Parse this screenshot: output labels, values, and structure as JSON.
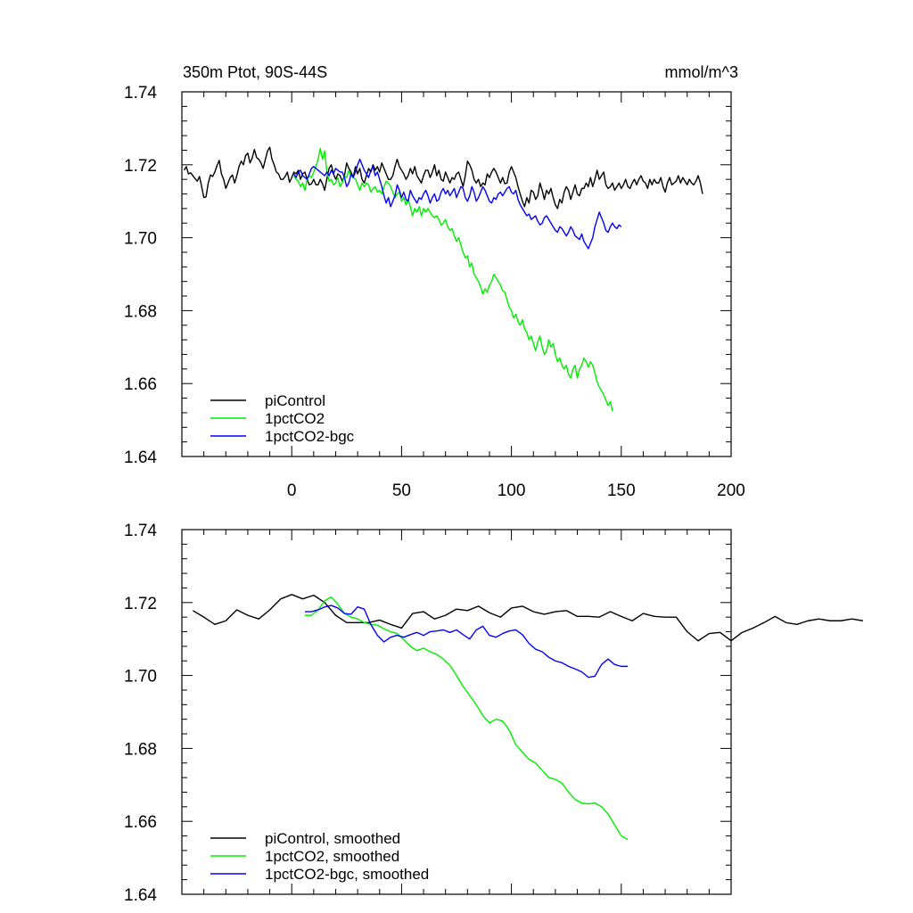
{
  "chart_data": [
    {
      "type": "line",
      "title_left": "350m Ptot, 90S-44S",
      "title_right": "mmol/m^3",
      "xlim": [
        -50,
        200
      ],
      "ylim": [
        1.64,
        1.74
      ],
      "x_ticks": [
        0,
        50,
        100,
        150,
        200
      ],
      "y_ticks": [
        1.64,
        1.66,
        1.68,
        1.7,
        1.72,
        1.74
      ],
      "y_tick_labels": [
        "1.64",
        "1.66",
        "1.68",
        "1.70",
        "1.72",
        "1.74"
      ],
      "x_tick_labels": [
        "0",
        "50",
        "100",
        "150",
        "200"
      ],
      "legend_position": "bottom-left",
      "series": [
        {
          "name": "piControl",
          "color": "#000000",
          "x_start": -49,
          "x_step": 1,
          "values": [
            1.7185,
            1.7195,
            1.7175,
            1.7178,
            1.717,
            1.7162,
            1.7155,
            1.7168,
            1.714,
            1.711,
            1.7112,
            1.715,
            1.7172,
            1.7168,
            1.718,
            1.7198,
            1.7212,
            1.7175,
            1.716,
            1.7135,
            1.715,
            1.7165,
            1.7172,
            1.715,
            1.717,
            1.7195,
            1.721,
            1.72,
            1.7225,
            1.7232,
            1.7205,
            1.7218,
            1.7242,
            1.722,
            1.7215,
            1.7205,
            1.719,
            1.7215,
            1.7238,
            1.7248,
            1.7215,
            1.72,
            1.718,
            1.7175,
            1.716,
            1.716,
            1.7168,
            1.718,
            1.7152,
            1.7165,
            1.718,
            1.7175,
            1.7185,
            1.716,
            1.7175,
            1.718,
            1.716,
            1.7145,
            1.7148,
            1.716,
            1.7145,
            1.7145,
            1.716,
            1.7148,
            1.713,
            1.7162,
            1.719,
            1.72,
            1.7175,
            1.716,
            1.7175,
            1.717,
            1.7155,
            1.717,
            1.7205,
            1.719,
            1.718,
            1.7165,
            1.7195,
            1.7175,
            1.719,
            1.716,
            1.715,
            1.717,
            1.719,
            1.718,
            1.72,
            1.7185,
            1.7195,
            1.718,
            1.7205,
            1.719,
            1.7175,
            1.716,
            1.716,
            1.717,
            1.7195,
            1.7215,
            1.7195,
            1.7185,
            1.7175,
            1.716,
            1.717,
            1.719,
            1.7175,
            1.7195,
            1.717,
            1.716,
            1.715,
            1.717,
            1.7185,
            1.7185,
            1.7165,
            1.718,
            1.72,
            1.717,
            1.7185,
            1.716,
            1.7155,
            1.718,
            1.7165,
            1.715,
            1.7165,
            1.716,
            1.7175,
            1.718,
            1.716,
            1.714,
            1.717,
            1.721,
            1.72,
            1.7185,
            1.716,
            1.715,
            1.716,
            1.714,
            1.715,
            1.7145,
            1.7175,
            1.7165,
            1.718,
            1.719,
            1.718,
            1.7165,
            1.715,
            1.7165,
            1.7148,
            1.715,
            1.718,
            1.7195,
            1.718,
            1.7165,
            1.714,
            1.712,
            1.71,
            1.7085,
            1.711,
            1.7095,
            1.713,
            1.7125,
            1.7105,
            1.7115,
            1.715,
            1.713,
            1.7105,
            1.713,
            1.712,
            1.7135,
            1.711,
            1.709,
            1.708,
            1.7105,
            1.7095,
            1.7125,
            1.714,
            1.713,
            1.7105,
            1.7125,
            1.7145,
            1.712,
            1.7115,
            1.7135,
            1.7135,
            1.715,
            1.714,
            1.7165,
            1.714,
            1.716,
            1.7185,
            1.716,
            1.717,
            1.718,
            1.7145,
            1.7135,
            1.714,
            1.715,
            1.713,
            1.714,
            1.715,
            1.7135,
            1.7145,
            1.716,
            1.714,
            1.7135,
            1.715,
            1.716,
            1.7145,
            1.716,
            1.717,
            1.7155,
            1.715,
            1.7135,
            1.716,
            1.7145,
            1.716,
            1.715,
            1.715,
            1.7165,
            1.714,
            1.7125,
            1.715,
            1.7165,
            1.7145,
            1.715,
            1.7155,
            1.717,
            1.715,
            1.7165,
            1.7155,
            1.7145,
            1.716,
            1.715,
            1.7145,
            1.7155,
            1.717,
            1.715,
            1.712
          ]
        },
        {
          "name": "1pctCO2",
          "color": "#00ee00",
          "x_start": 1,
          "x_step": 1,
          "values": [
            1.717,
            1.716,
            1.7155,
            1.714,
            1.715,
            1.713,
            1.716,
            1.717,
            1.7165,
            1.718,
            1.7195,
            1.7215,
            1.7245,
            1.7215,
            1.7238,
            1.718,
            1.7155,
            1.716,
            1.7145,
            1.715,
            1.7165,
            1.714,
            1.715,
            1.717,
            1.7165,
            1.7185,
            1.717,
            1.7165,
            1.716,
            1.7145,
            1.713,
            1.715,
            1.714,
            1.715,
            1.7145,
            1.7125,
            1.7135,
            1.714,
            1.7125,
            1.713,
            1.712,
            1.714,
            1.7155,
            1.715,
            1.714,
            1.7125,
            1.711,
            1.712,
            1.7125,
            1.71,
            1.711,
            1.709,
            1.7105,
            1.7085,
            1.706,
            1.708,
            1.707,
            1.7085,
            1.706,
            1.708,
            1.707,
            1.708,
            1.707,
            1.706,
            1.7055,
            1.706,
            1.705,
            1.7035,
            1.704,
            1.705,
            1.703,
            1.702,
            1.7025,
            1.7005,
            1.699,
            1.7,
            1.698,
            1.696,
            1.6945,
            1.695,
            1.692,
            1.693,
            1.69,
            1.689,
            1.688,
            1.6865,
            1.6845,
            1.686,
            1.685,
            1.687,
            1.688,
            1.69,
            1.689,
            1.688,
            1.687,
            1.6855,
            1.685,
            1.683,
            1.681,
            1.68,
            1.678,
            1.679,
            1.677,
            1.676,
            1.6775,
            1.675,
            1.674,
            1.672,
            1.673,
            1.671,
            1.669,
            1.6715,
            1.673,
            1.67,
            1.668,
            1.669,
            1.672,
            1.67,
            1.671,
            1.668,
            1.666,
            1.667,
            1.665,
            1.664,
            1.665,
            1.6625,
            1.6615,
            1.664,
            1.665,
            1.6615,
            1.664,
            1.665,
            1.667,
            1.666,
            1.6645,
            1.666,
            1.665,
            1.663,
            1.6605,
            1.659,
            1.658,
            1.657,
            1.6555,
            1.654,
            1.655,
            1.6525
          ]
        },
        {
          "name": "1pctCO2-bgc",
          "color": "#0000ff",
          "x_start": 1,
          "x_step": 1,
          "values": [
            1.7175,
            1.7165,
            1.718,
            1.7185,
            1.717,
            1.7165,
            1.716,
            1.7175,
            1.719,
            1.7195,
            1.719,
            1.7185,
            1.718,
            1.7175,
            1.717,
            1.718,
            1.717,
            1.7185,
            1.7175,
            1.719,
            1.7185,
            1.718,
            1.718,
            1.7165,
            1.714,
            1.715,
            1.7175,
            1.7165,
            1.718,
            1.72,
            1.7215,
            1.72,
            1.7185,
            1.7175,
            1.7165,
            1.7185,
            1.7195,
            1.717,
            1.718,
            1.716,
            1.714,
            1.7115,
            1.7095,
            1.711,
            1.7085,
            1.71,
            1.7115,
            1.7145,
            1.713,
            1.711,
            1.7125,
            1.7105,
            1.71,
            1.713,
            1.7115,
            1.7105,
            1.7095,
            1.711,
            1.7105,
            1.712,
            1.713,
            1.7115,
            1.7095,
            1.711,
            1.712,
            1.71,
            1.7105,
            1.7125,
            1.7135,
            1.712,
            1.713,
            1.7115,
            1.7125,
            1.7135,
            1.711,
            1.7125,
            1.714,
            1.7135,
            1.711,
            1.71,
            1.7115,
            1.714,
            1.7125,
            1.71,
            1.711,
            1.7125,
            1.714,
            1.713,
            1.7115,
            1.71,
            1.7095,
            1.711,
            1.7105,
            1.712,
            1.7125,
            1.7115,
            1.7125,
            1.7135,
            1.714,
            1.7125,
            1.712,
            1.713,
            1.7105,
            1.709,
            1.708,
            1.707,
            1.706,
            1.7065,
            1.705,
            1.7055,
            1.706,
            1.7045,
            1.7035,
            1.704,
            1.7055,
            1.706,
            1.705,
            1.704,
            1.703,
            1.702,
            1.7015,
            1.703,
            1.7025,
            1.7015,
            1.7005,
            1.7015,
            1.703,
            1.702,
            1.7005,
            1.7,
            1.6995,
            1.701,
            1.699,
            1.698,
            1.697,
            1.6985,
            1.7,
            1.703,
            1.705,
            1.707,
            1.7055,
            1.704,
            1.702,
            1.7015,
            1.703,
            1.704,
            1.703,
            1.7025,
            1.7035,
            1.703
          ]
        }
      ]
    },
    {
      "type": "line",
      "xlim": [
        -50,
        200
      ],
      "ylim": [
        1.64,
        1.74
      ],
      "x_ticks": [
        0,
        50,
        100,
        150,
        200
      ],
      "y_ticks": [
        1.64,
        1.66,
        1.68,
        1.7,
        1.72,
        1.74
      ],
      "y_tick_labels": [
        "1.64",
        "1.66",
        "1.68",
        "1.70",
        "1.72",
        "1.74"
      ],
      "legend_position": "bottom-left",
      "series": [
        {
          "name": "piControl, smoothed",
          "color": "#000000",
          "x_start": -45,
          "x_step": 5,
          "values": [
            1.7178,
            1.716,
            1.714,
            1.715,
            1.718,
            1.7165,
            1.7155,
            1.718,
            1.721,
            1.7222,
            1.721,
            1.722,
            1.72,
            1.7165,
            1.7145,
            1.7145,
            1.7145,
            1.7152,
            1.714,
            1.713,
            1.717,
            1.7175,
            1.7155,
            1.7165,
            1.7182,
            1.7178,
            1.719,
            1.7172,
            1.716,
            1.7185,
            1.719,
            1.7175,
            1.7168,
            1.7175,
            1.7178,
            1.7162,
            1.7162,
            1.716,
            1.7175,
            1.7162,
            1.715,
            1.717,
            1.7162,
            1.716,
            1.716,
            1.712,
            1.7095,
            1.7115,
            1.7118,
            1.7095,
            1.7118,
            1.713,
            1.7145,
            1.7162,
            1.7145,
            1.714,
            1.715,
            1.7155,
            1.715,
            1.715,
            1.7155,
            1.715
          ]
        },
        {
          "name": "1pctCO2, smoothed",
          "color": "#00ee00",
          "x_start": 6,
          "x_step": 3,
          "values": [
            1.7165,
            1.7165,
            1.718,
            1.7205,
            1.7215,
            1.7195,
            1.717,
            1.716,
            1.7155,
            1.7145,
            1.714,
            1.7138,
            1.7128,
            1.712,
            1.7115,
            1.7098,
            1.708,
            1.7068,
            1.7075,
            1.7065,
            1.7058,
            1.7045,
            1.7028,
            1.7,
            1.697,
            1.6945,
            1.692,
            1.689,
            1.687,
            1.688,
            1.6875,
            1.685,
            1.681,
            1.679,
            1.677,
            1.676,
            1.674,
            1.672,
            1.6715,
            1.6705,
            1.668,
            1.666,
            1.665,
            1.6648,
            1.665,
            1.664,
            1.662,
            1.659,
            1.656,
            1.655
          ]
        },
        {
          "name": "1pctCO2-bgc, smoothed",
          "color": "#0000ff",
          "x_start": 6,
          "x_step": 3,
          "values": [
            1.7175,
            1.7175,
            1.718,
            1.7188,
            1.7192,
            1.7185,
            1.717,
            1.7168,
            1.7188,
            1.7182,
            1.714,
            1.711,
            1.7092,
            1.7105,
            1.711,
            1.7105,
            1.7112,
            1.7118,
            1.711,
            1.712,
            1.7122,
            1.7125,
            1.7118,
            1.7125,
            1.7112,
            1.71,
            1.7125,
            1.7135,
            1.711,
            1.7105,
            1.7115,
            1.7122,
            1.7125,
            1.7112,
            1.7088,
            1.7072,
            1.7065,
            1.705,
            1.704,
            1.7035,
            1.7025,
            1.7018,
            1.701,
            1.6995,
            1.6998,
            1.703,
            1.7045,
            1.703,
            1.7025,
            1.7025
          ]
        }
      ]
    }
  ]
}
